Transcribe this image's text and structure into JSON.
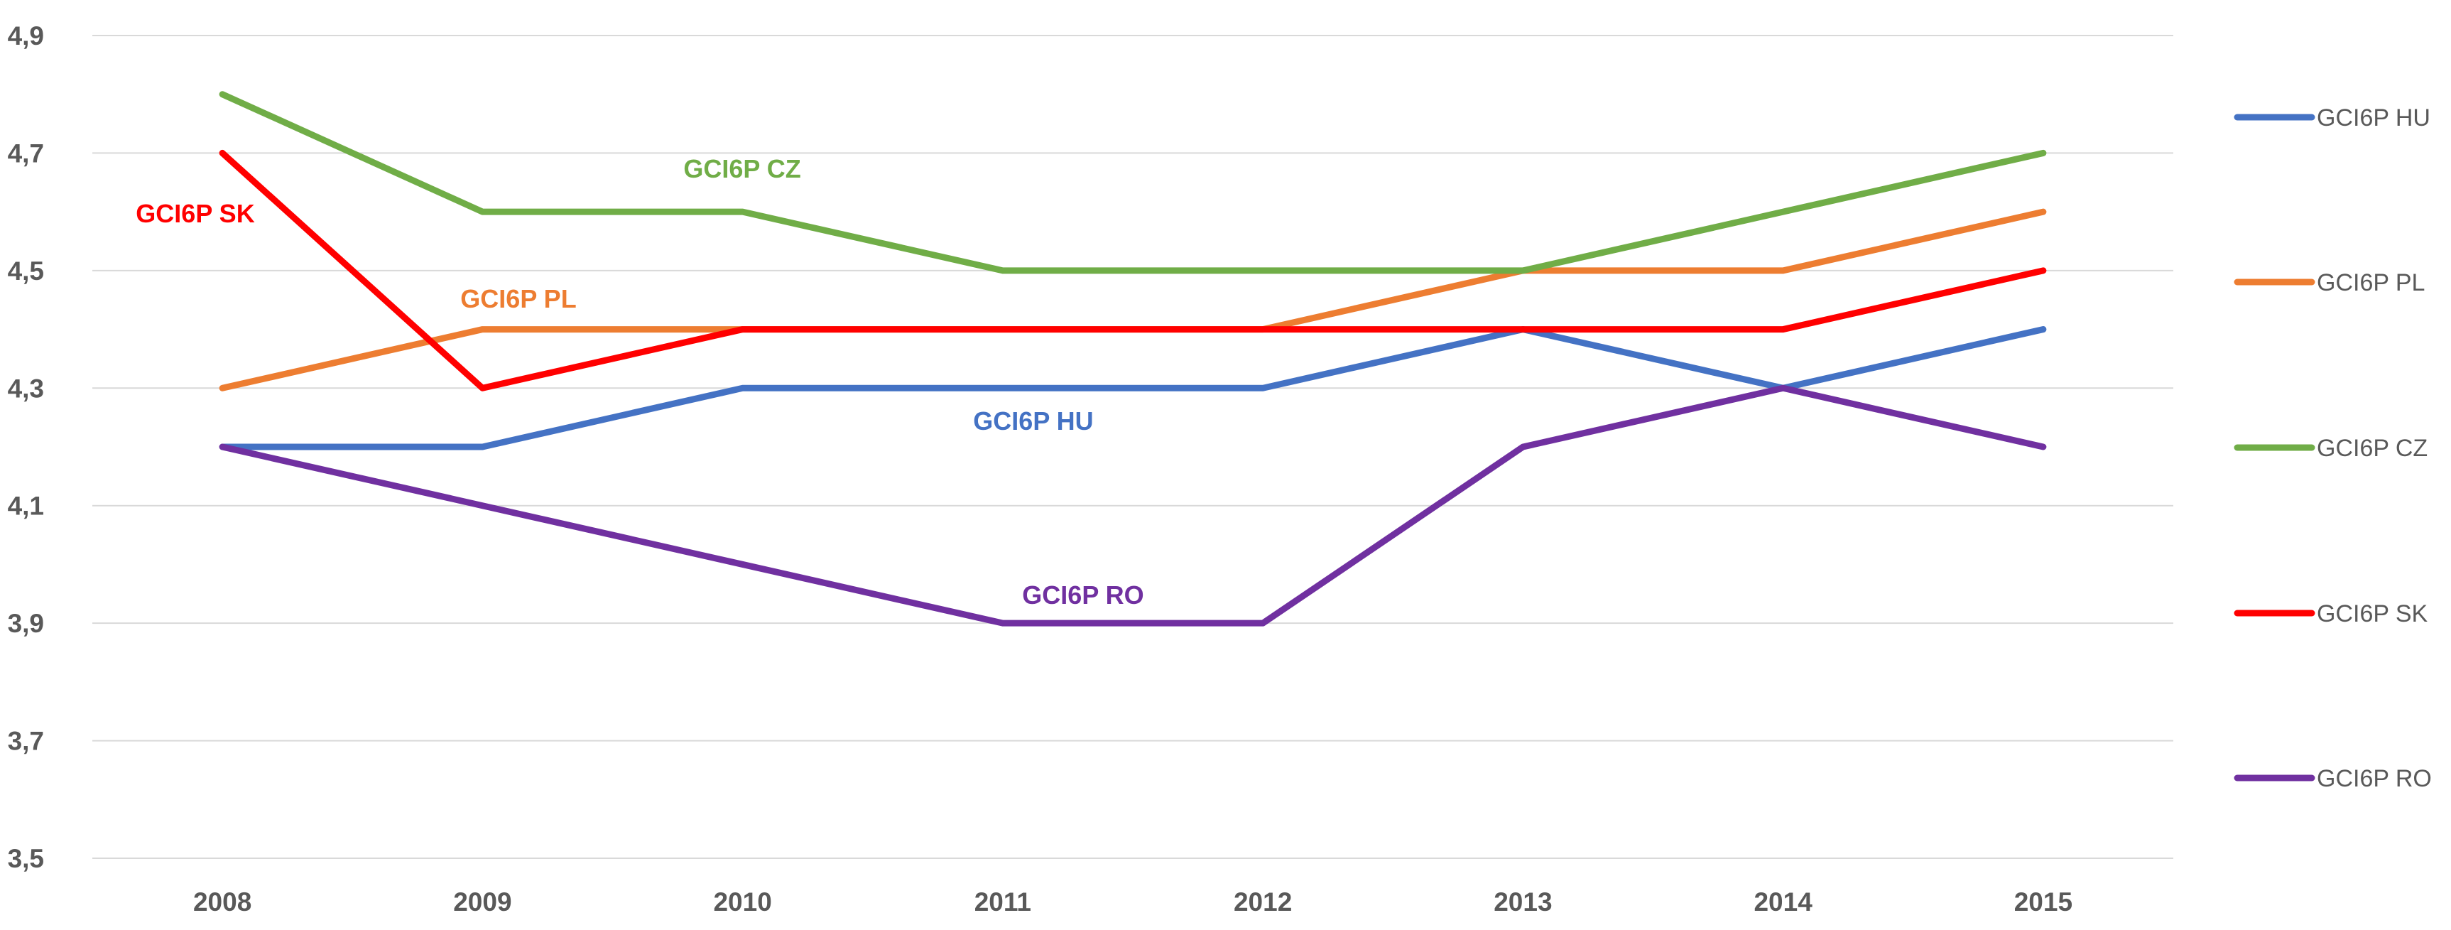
{
  "chart_data": {
    "type": "line",
    "title": "",
    "xlabel": "",
    "ylabel": "",
    "categories": [
      "2008",
      "2009",
      "2010",
      "2011",
      "2012",
      "2013",
      "2014",
      "2015"
    ],
    "ylim": [
      3.5,
      4.9
    ],
    "yticks": [
      "3,5",
      "3,7",
      "3,9",
      "4,1",
      "4,3",
      "4,5",
      "4,7",
      "4,9"
    ],
    "grid": true,
    "legend_position": "right",
    "series": [
      {
        "name": "GCI6P HU",
        "color": "#4472C4",
        "values": [
          4.2,
          4.2,
          4.3,
          4.3,
          4.3,
          4.4,
          4.3,
          4.4
        ],
        "annotation": "GCI6P HU"
      },
      {
        "name": "GCI6P PL",
        "color": "#ED7D31",
        "values": [
          4.3,
          4.4,
          4.4,
          4.4,
          4.4,
          4.5,
          4.5,
          4.6
        ],
        "annotation": "GCI6P PL"
      },
      {
        "name": "GCI6P CZ",
        "color": "#70AD47",
        "values": [
          4.8,
          4.6,
          4.6,
          4.5,
          4.5,
          4.5,
          4.6,
          4.7
        ],
        "annotation": "GCI6P CZ"
      },
      {
        "name": "GCI6P SK",
        "color": "#FF0000",
        "values": [
          4.7,
          4.3,
          4.4,
          4.4,
          4.4,
          4.4,
          4.4,
          4.5
        ],
        "annotation": "GCI6P SK"
      },
      {
        "name": "GCI6P RO",
        "color": "#7030A0",
        "values": [
          4.2,
          4.1,
          4.0,
          3.9,
          3.9,
          4.2,
          4.3,
          4.2
        ],
        "annotation": "GCI6P RO"
      }
    ]
  }
}
